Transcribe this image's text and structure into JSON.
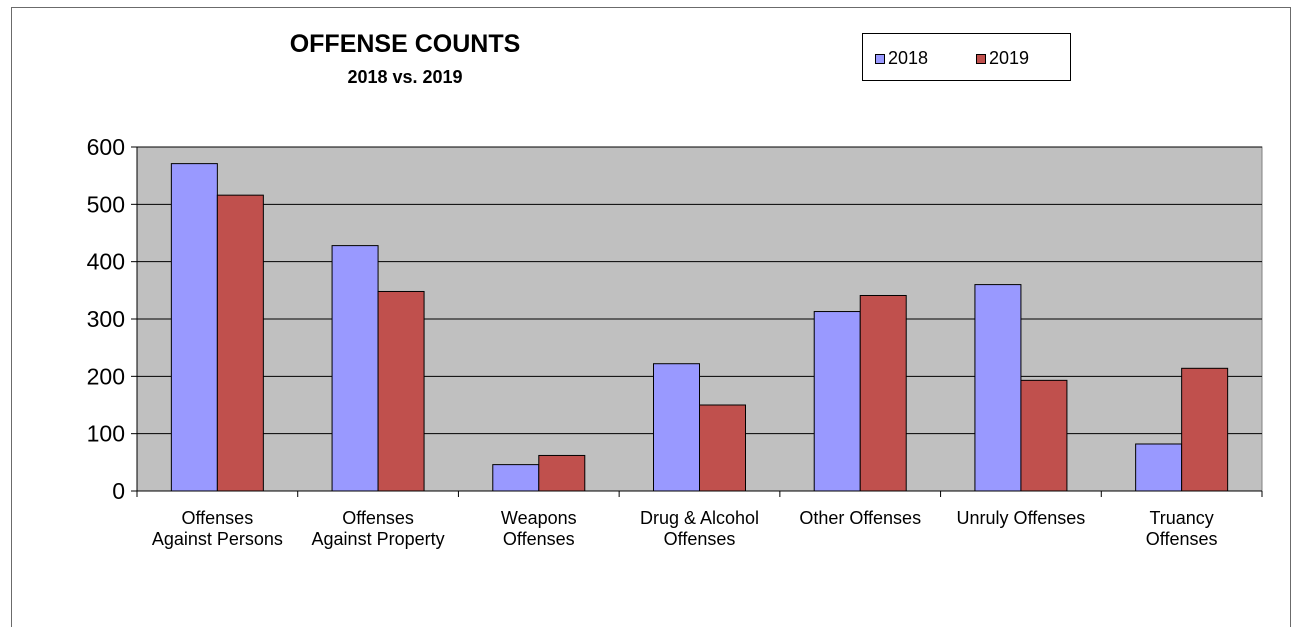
{
  "chart_data": {
    "type": "bar",
    "title": "OFFENSE COUNTS",
    "subtitle": "2018 vs. 2019",
    "categories": [
      [
        "Offenses",
        "Against Persons"
      ],
      [
        "Offenses",
        "Against Property"
      ],
      [
        "Weapons",
        "Offenses"
      ],
      [
        "Drug & Alcohol",
        "Offenses"
      ],
      [
        "Other Offenses"
      ],
      [
        "Unruly Offenses"
      ],
      [
        "Truancy",
        "Offenses"
      ]
    ],
    "series": [
      {
        "name": "2018",
        "color": "#9999ff",
        "values": [
          571,
          428,
          46,
          222,
          313,
          360,
          82
        ]
      },
      {
        "name": "2019",
        "color": "#c0504d",
        "values": [
          516,
          348,
          62,
          150,
          341,
          193,
          214
        ]
      }
    ],
    "ylim": [
      0,
      600
    ],
    "yticks": [
      0,
      100,
      200,
      300,
      400,
      500,
      600
    ],
    "plot_background": "#c0c0c0",
    "grid": true,
    "legend_position": "top-right"
  }
}
